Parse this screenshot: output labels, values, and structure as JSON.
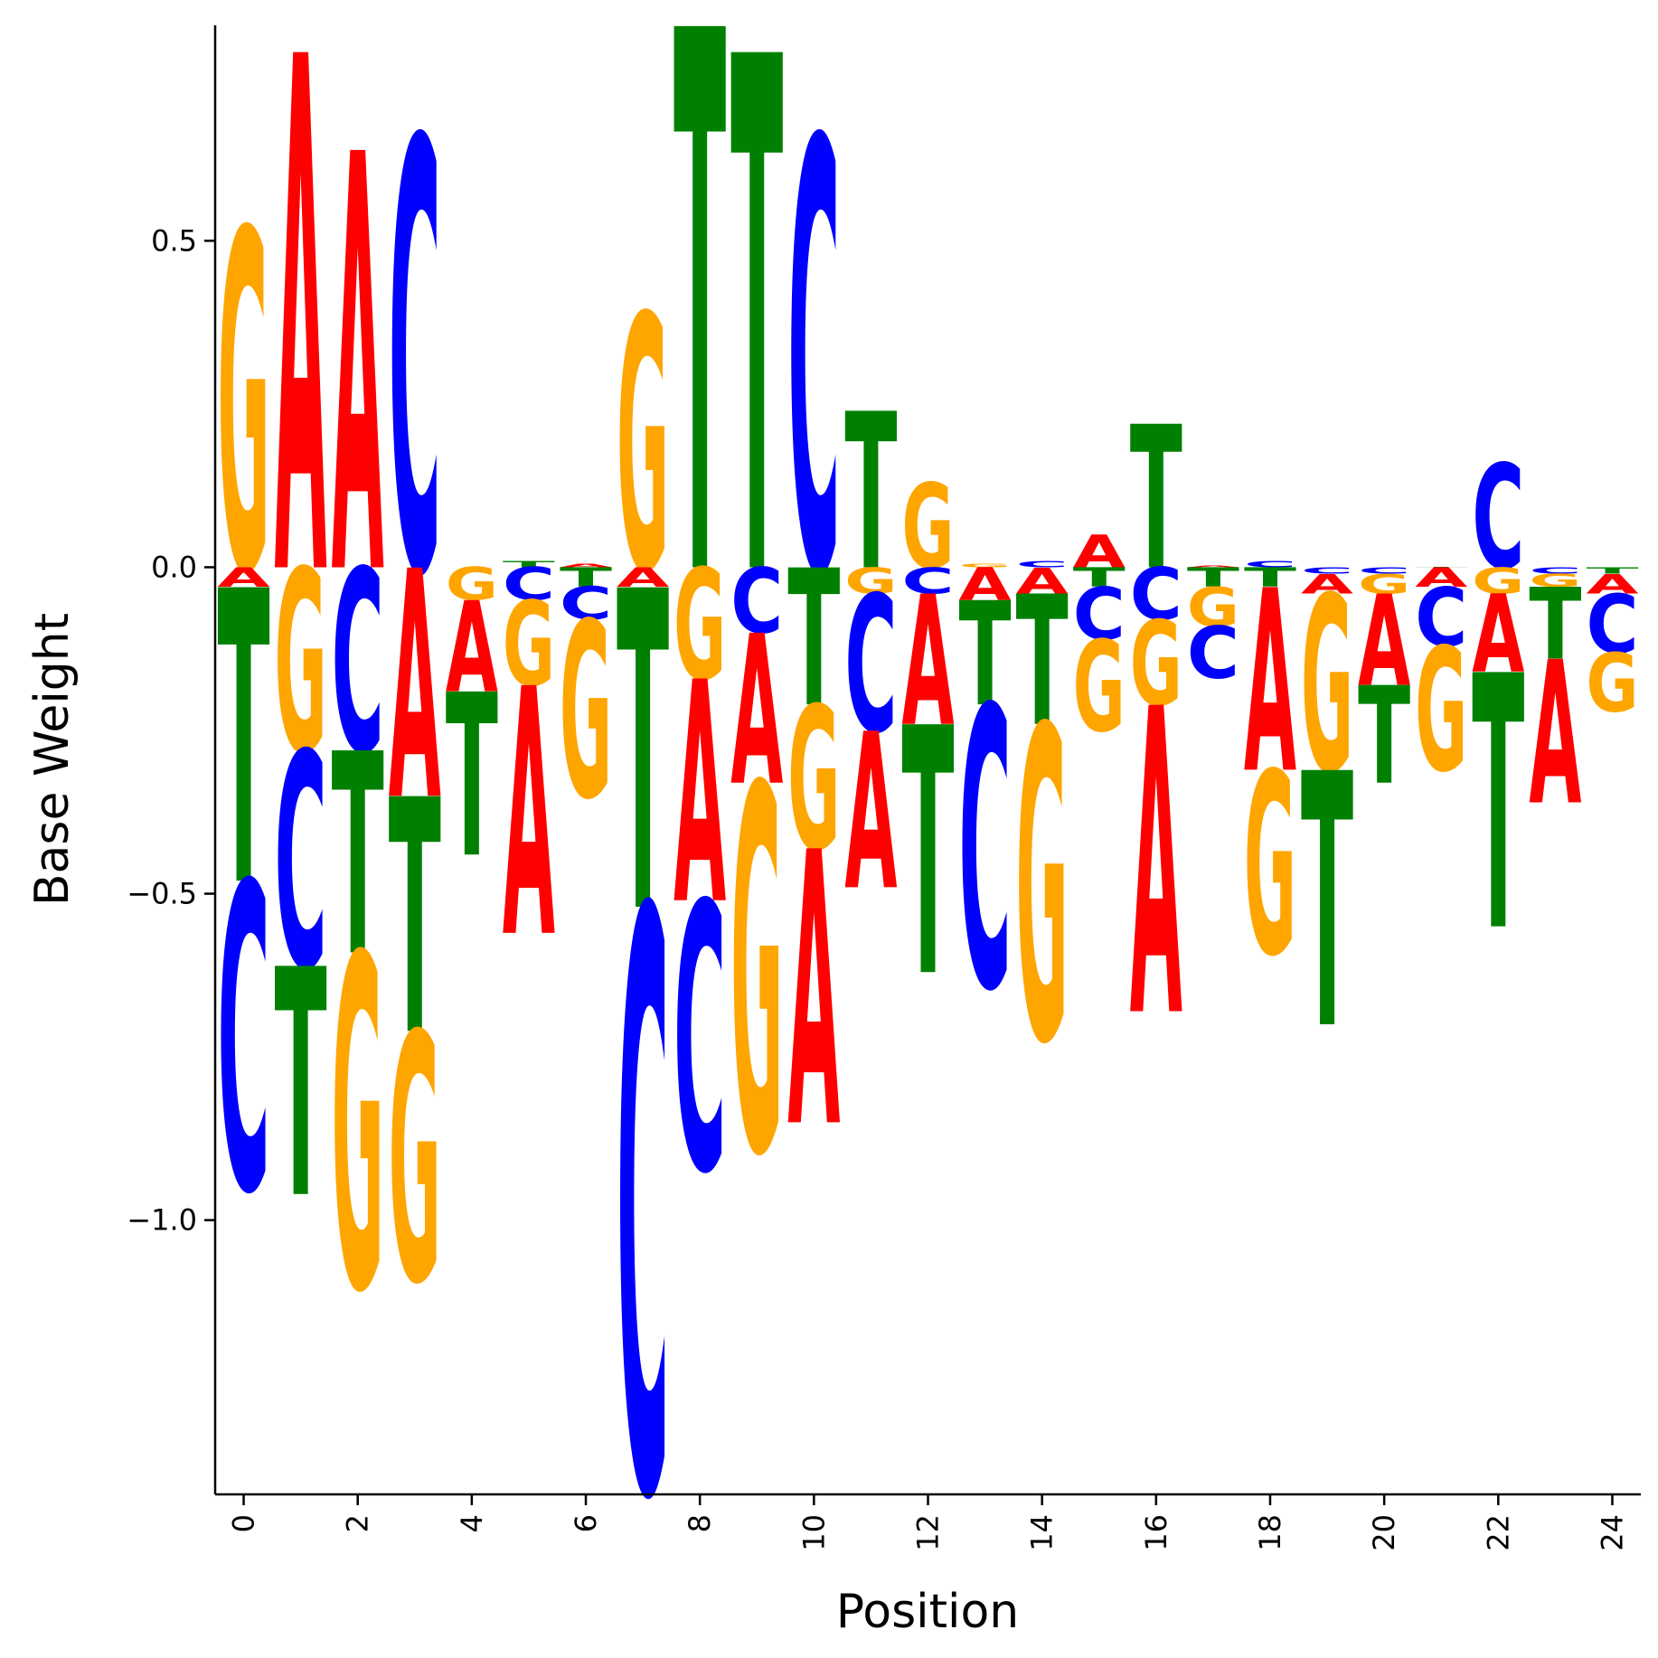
{
  "chart_data": {
    "type": "logo",
    "xlabel": "Position",
    "ylabel": "Base Weight",
    "xlim": [
      -0.5,
      24.5
    ],
    "ylim": [
      -1.42,
      0.83
    ],
    "x_ticks": [
      0,
      2,
      4,
      6,
      8,
      10,
      12,
      14,
      16,
      18,
      20,
      22,
      24
    ],
    "y_ticks": [
      {
        "value": 0.5,
        "label": "0.5"
      },
      {
        "value": 0.0,
        "label": "0.0"
      },
      {
        "value": -0.5,
        "label": "−0.5"
      },
      {
        "value": -1.0,
        "label": "−1.0"
      }
    ],
    "colors": {
      "A": "#ff0000",
      "C": "#0000ff",
      "G": "#ffa500",
      "T": "#008000"
    },
    "positions": [
      {
        "position": 0,
        "weights": {
          "A": -0.03,
          "C": -0.47,
          "G": 0.52,
          "T": -0.45
        }
      },
      {
        "position": 1,
        "weights": {
          "A": 0.79,
          "C": -0.33,
          "G": -0.28,
          "T": -0.35
        }
      },
      {
        "position": 2,
        "weights": {
          "A": 0.64,
          "C": -0.28,
          "G": -0.51,
          "T": -0.31
        }
      },
      {
        "position": 3,
        "weights": {
          "A": -0.35,
          "C": 0.66,
          "G": -0.38,
          "T": -0.36
        }
      },
      {
        "position": 4,
        "weights": {
          "A": -0.14,
          "C": 0.0,
          "G": -0.05,
          "T": -0.25
        }
      },
      {
        "position": 5,
        "weights": {
          "A": -0.38,
          "C": -0.05,
          "G": -0.13,
          "T": 0.01
        }
      },
      {
        "position": 6,
        "weights": {
          "A": 0.005,
          "C": -0.05,
          "G": -0.27,
          "T": -0.03
        }
      },
      {
        "position": 7,
        "weights": {
          "A": -0.03,
          "C": -0.89,
          "G": 0.39,
          "T": -0.49
        }
      },
      {
        "position": 8,
        "weights": {
          "A": -0.34,
          "C": -0.41,
          "G": -0.17,
          "T": 0.83
        }
      },
      {
        "position": 9,
        "weights": {
          "A": -0.23,
          "C": -0.1,
          "G": -0.56,
          "T": 0.79
        }
      },
      {
        "position": 10,
        "weights": {
          "A": -0.42,
          "C": 0.66,
          "G": -0.22,
          "T": -0.21
        }
      },
      {
        "position": 11,
        "weights": {
          "A": -0.24,
          "C": -0.21,
          "G": -0.04,
          "T": 0.24
        }
      },
      {
        "position": 12,
        "weights": {
          "A": -0.2,
          "C": -0.04,
          "G": 0.13,
          "T": -0.38
        }
      },
      {
        "position": 13,
        "weights": {
          "A": -0.05,
          "C": -0.43,
          "G": 0.005,
          "T": -0.16
        }
      },
      {
        "position": 14,
        "weights": {
          "A": -0.04,
          "C": 0.01,
          "G": -0.48,
          "T": -0.2
        }
      },
      {
        "position": 15,
        "weights": {
          "A": 0.05,
          "C": -0.08,
          "G": -0.14,
          "T": -0.03
        }
      },
      {
        "position": 16,
        "weights": {
          "A": -0.47,
          "C": -0.08,
          "G": -0.13,
          "T": 0.22
        }
      },
      {
        "position": 17,
        "weights": {
          "A": 0.003,
          "C": -0.08,
          "G": -0.06,
          "T": -0.03
        }
      },
      {
        "position": 18,
        "weights": {
          "A": -0.28,
          "C": 0.01,
          "G": -0.28,
          "T": -0.03
        }
      },
      {
        "position": 19,
        "weights": {
          "A": -0.03,
          "C": -0.01,
          "G": -0.27,
          "T": -0.39
        }
      },
      {
        "position": 20,
        "weights": {
          "A": -0.14,
          "C": -0.01,
          "G": -0.03,
          "T": -0.15
        }
      },
      {
        "position": 21,
        "weights": {
          "A": -0.03,
          "C": -0.09,
          "G": -0.19,
          "T": 0.001
        }
      },
      {
        "position": 22,
        "weights": {
          "A": -0.12,
          "C": 0.16,
          "G": -0.04,
          "T": -0.39
        }
      },
      {
        "position": 23,
        "weights": {
          "A": -0.22,
          "C": -0.01,
          "G": -0.02,
          "T": -0.11
        }
      },
      {
        "position": 24,
        "weights": {
          "A": -0.03,
          "C": -0.09,
          "G": -0.09,
          "T": -0.01
        }
      }
    ]
  }
}
